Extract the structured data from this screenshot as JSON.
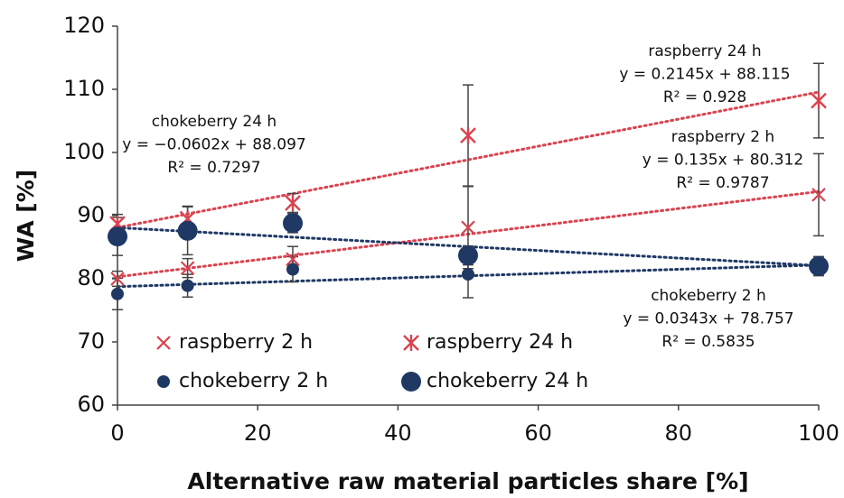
{
  "chart_data": {
    "type": "scatter",
    "x_label": "Alternative raw material particles share [%]",
    "y_label": "WA [%]",
    "xlim": [
      0,
      100
    ],
    "xticks": [
      0,
      20,
      40,
      60,
      80,
      100
    ],
    "ylim": [
      60,
      120
    ],
    "yticks": [
      60,
      70,
      80,
      90,
      100,
      110,
      120
    ],
    "grid": false,
    "x": [
      0,
      10,
      25,
      50,
      100
    ],
    "series": [
      {
        "name": "raspberry 2 h",
        "color": "#d9434f",
        "marker": "x",
        "values": [
          80.0,
          81.7,
          83.1,
          88.1,
          93.3
        ],
        "errors": [
          1.2,
          1.5,
          2.0,
          6.5,
          6.5
        ],
        "trend": {
          "equation": "y = 0.135x + 80.312",
          "r2": "R² = 0.9787",
          "slope": 0.135,
          "intercept": 80.312
        }
      },
      {
        "name": "raspberry 24 h",
        "color": "#d9434f",
        "marker": "asterisk",
        "values": [
          88.7,
          89.5,
          92.0,
          102.7,
          108.2
        ],
        "errors": [
          1.5,
          2.0,
          1.5,
          8.0,
          5.9
        ],
        "trend": {
          "equation": "y = 0.2145x + 88.115",
          "r2": "R² = 0.928",
          "slope": 0.2145,
          "intercept": 88.115
        }
      },
      {
        "name": "chokeberry 2 h",
        "color": "#1f3864",
        "marker": "circle-small",
        "values": [
          77.6,
          78.9,
          81.5,
          80.7,
          82.0
        ],
        "errors": [
          2.5,
          1.8,
          2.0,
          3.7,
          1.5
        ],
        "trend": {
          "equation": "y = 0.0343x + 78.757",
          "r2": "R² = 0.5835",
          "slope": 0.0343,
          "intercept": 78.757
        }
      },
      {
        "name": "chokeberry 24 h",
        "color": "#1f3864",
        "marker": "circle-large",
        "values": [
          86.7,
          87.6,
          88.8,
          83.7,
          82.0
        ],
        "errors": [
          3.0,
          3.8,
          1.5,
          1.5,
          1.5
        ],
        "trend": {
          "equation": "y = −0.0602x + 88.097",
          "r2": "R² = 0.7297",
          "slope": -0.0602,
          "intercept": 88.097
        }
      }
    ]
  }
}
